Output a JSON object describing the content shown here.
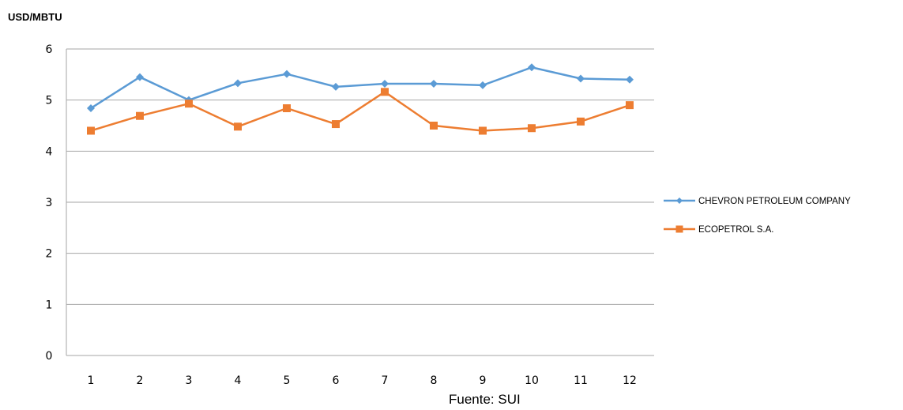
{
  "header": {
    "unit_label": "USD/MBTU"
  },
  "footer": {
    "source": "Fuente: SUI"
  },
  "chart_data": {
    "type": "line",
    "title": "",
    "xlabel": "",
    "ylabel": "USD/MBTU",
    "x": [
      1,
      2,
      3,
      4,
      5,
      6,
      7,
      8,
      9,
      10,
      11,
      12
    ],
    "ylim": [
      0,
      6
    ],
    "yticks": [
      0,
      1,
      2,
      3,
      4,
      5,
      6
    ],
    "grid": true,
    "legend_position": "right",
    "series": [
      {
        "name": "CHEVRON PETROLEUM COMPANY",
        "color": "#5B9BD5",
        "marker": "diamond",
        "values": [
          4.84,
          5.45,
          5.0,
          5.33,
          5.51,
          5.26,
          5.32,
          5.32,
          5.29,
          5.64,
          5.42,
          5.4
        ]
      },
      {
        "name": "ECOPETROL S.A.",
        "color": "#ED7D31",
        "marker": "square",
        "values": [
          4.4,
          4.69,
          4.93,
          4.48,
          4.84,
          4.53,
          5.16,
          4.5,
          4.4,
          4.45,
          4.58,
          4.9
        ]
      }
    ]
  }
}
